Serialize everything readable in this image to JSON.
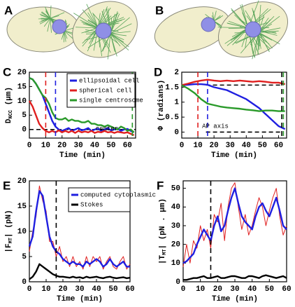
{
  "panel_labels": [
    "A",
    "B",
    "C",
    "D",
    "E",
    "F"
  ],
  "chart_data": [
    {
      "type": "line",
      "ylabel": {
        "text": "D",
        "sub": "NCC",
        "unit": " (μm)"
      },
      "xlabel": "Time (min)",
      "xlim": [
        0,
        65
      ],
      "xticks": [
        0,
        10,
        20,
        30,
        40,
        50,
        60
      ],
      "ylim": [
        -3,
        20
      ],
      "yticks": [
        0,
        5,
        10,
        15,
        20
      ],
      "x": [
        0,
        2,
        4,
        6,
        8,
        10,
        12,
        14,
        16,
        18,
        20,
        22,
        24,
        26,
        28,
        30,
        32,
        34,
        36,
        38,
        40,
        42,
        44,
        46,
        48,
        50,
        52,
        54,
        56,
        58,
        60,
        62,
        64
      ],
      "series": [
        {
          "name": "ellipsoidal cell",
          "color": "#1f1fe0",
          "values": [
            18,
            17.5,
            16,
            14,
            12,
            9,
            6,
            3,
            1,
            0,
            -0.5,
            0,
            0.5,
            -0.5,
            0,
            0.5,
            -0.3,
            0,
            0.5,
            -0.5,
            0,
            0.3,
            -0.5,
            0,
            0.5,
            -0.3,
            0,
            0.3,
            -0.5,
            0,
            0.2,
            -0.5,
            -1
          ]
        },
        {
          "name": "spherical cell",
          "color": "#e01f1f",
          "values": [
            10,
            8,
            5,
            2,
            0.5,
            -0.5,
            -1,
            -0.5,
            -1,
            -0.3,
            -1,
            -0.5,
            -1,
            -0.5,
            -1.2,
            -0.5,
            -1,
            -0.7,
            -1,
            -0.5,
            -1.2,
            -0.8,
            -1,
            -0.5,
            -1,
            -0.8,
            -1.2,
            -0.8,
            -1,
            -1.2,
            -1,
            -1.5,
            -2
          ]
        },
        {
          "name": "single centrosome",
          "color": "#2a9a2a",
          "values": [
            18,
            17.5,
            16,
            14,
            12,
            11,
            9,
            6,
            4,
            3.5,
            3.5,
            4,
            3,
            3.5,
            3,
            3,
            2.5,
            2.5,
            3,
            2,
            2,
            1.5,
            1.5,
            1,
            1.5,
            1,
            0.5,
            0,
            1,
            0.5,
            -0.5,
            0,
            -1
          ]
        }
      ],
      "vlines": [
        {
          "x": 10,
          "color": "#e01f1f"
        },
        {
          "x": 16,
          "color": "#1f1fe0"
        },
        {
          "x": 63,
          "color": "#2a9a2a"
        }
      ],
      "hlines": [
        {
          "y": 0,
          "x0": 0,
          "x1": 65,
          "color": "#000000"
        }
      ],
      "annotations": [
        "center"
      ]
    },
    {
      "type": "line",
      "ylabel": {
        "text": "Φ (radians)"
      },
      "xlabel": "Time (min)",
      "xlim": [
        0,
        65
      ],
      "xticks": [
        0,
        10,
        20,
        30,
        40,
        50,
        60
      ],
      "ylim": [
        -0.2,
        2
      ],
      "yticks": [
        0,
        0.5,
        1,
        1.5,
        2
      ],
      "x": [
        0,
        4,
        8,
        12,
        16,
        20,
        24,
        28,
        32,
        36,
        40,
        44,
        48,
        52,
        56,
        60,
        64
      ],
      "series": [
        {
          "color": "#1f1fe0",
          "values": [
            1.57,
            1.58,
            1.6,
            1.6,
            1.58,
            1.5,
            1.45,
            1.4,
            1.3,
            1.2,
            1.1,
            0.95,
            0.8,
            0.6,
            0.4,
            0.2,
            0.1
          ]
        },
        {
          "color": "#e01f1f",
          "values": [
            1.57,
            1.62,
            1.68,
            1.72,
            1.75,
            1.72,
            1.7,
            1.72,
            1.7,
            1.72,
            1.7,
            1.68,
            1.7,
            1.68,
            1.65,
            1.65,
            1.6
          ]
        },
        {
          "color": "#2a9a2a",
          "values": [
            1.57,
            1.45,
            1.3,
            1.1,
            0.95,
            0.9,
            0.85,
            0.82,
            0.8,
            0.78,
            0.75,
            0.73,
            0.7,
            0.72,
            0.72,
            0.7,
            0.7
          ]
        }
      ],
      "vlines": [
        {
          "x": 10,
          "color": "#e01f1f"
        },
        {
          "x": 16,
          "color": "#1f1fe0"
        },
        {
          "x": 62,
          "color": "#000000"
        },
        {
          "x": 63,
          "color": "#2a9a2a"
        }
      ],
      "hlines": [
        {
          "y": 1.57,
          "x0": 15,
          "x1": 62,
          "color": "#000000"
        },
        {
          "y": 0,
          "x0": 15,
          "x1": 62,
          "color": "#000000"
        }
      ],
      "annotations": [
        "AP axis"
      ]
    },
    {
      "type": "line",
      "ylabel": {
        "text": "|F",
        "sub": "MT",
        "unit": "| (pN)"
      },
      "xlabel": "Time (min)",
      "xlim": [
        0,
        60
      ],
      "xticks": [
        0,
        10,
        20,
        30,
        40,
        50,
        60
      ],
      "ylim": [
        0,
        20
      ],
      "yticks": [
        0,
        5,
        10,
        15,
        20
      ],
      "x": [
        0,
        2,
        4,
        6,
        8,
        10,
        12,
        14,
        16,
        18,
        20,
        22,
        24,
        26,
        28,
        30,
        32,
        34,
        36,
        38,
        40,
        42,
        44,
        46,
        48,
        50,
        52,
        54,
        56,
        58,
        60
      ],
      "series": [
        {
          "color": "#e01f1f",
          "values": [
            6,
            10,
            13,
            19,
            16,
            14,
            8,
            8,
            5,
            7,
            4,
            5,
            3,
            5,
            3,
            4,
            2.5,
            5,
            3,
            5,
            4,
            5,
            2.5,
            4,
            5,
            3,
            2.5,
            4,
            5,
            2.5,
            3.5
          ]
        },
        {
          "name": "computed cytoplasmic",
          "color": "#1f1fe0",
          "values": [
            7,
            9,
            14,
            18,
            17,
            13,
            9,
            7,
            6,
            5.5,
            4.5,
            4,
            3.5,
            4,
            3.5,
            3.5,
            3,
            4,
            3.5,
            4,
            4.5,
            4,
            3,
            3.5,
            4.5,
            3.5,
            3,
            3.5,
            4,
            3,
            3
          ]
        },
        {
          "name": "Stokes",
          "color": "#000000",
          "values": [
            0.5,
            1,
            2,
            3.5,
            3,
            2.5,
            2,
            1.5,
            1.2,
            1,
            1,
            0.9,
            0.8,
            1,
            0.8,
            0.9,
            0.7,
            1,
            0.8,
            0.9,
            1,
            0.8,
            0.7,
            0.9,
            1,
            0.8,
            0.7,
            0.8,
            0.9,
            0.7,
            0.8
          ]
        }
      ],
      "vlines": [
        {
          "x": 16,
          "color": "#000000"
        }
      ],
      "hlines": [],
      "annotations": []
    },
    {
      "type": "line",
      "ylabel": {
        "text": "|T",
        "sub": "MT",
        "unit": "| (pN . μm)"
      },
      "xlabel": "Time (min)",
      "xlim": [
        0,
        60
      ],
      "xticks": [
        0,
        10,
        20,
        30,
        40,
        50,
        60
      ],
      "ylim": [
        0,
        54
      ],
      "yticks": [
        0,
        10,
        20,
        30,
        40,
        50
      ],
      "x": [
        0,
        2,
        4,
        6,
        8,
        10,
        12,
        14,
        16,
        18,
        20,
        22,
        24,
        26,
        28,
        30,
        32,
        34,
        36,
        38,
        40,
        42,
        44,
        46,
        48,
        50,
        52,
        54,
        56,
        58,
        60
      ],
      "series": [
        {
          "color": "#e01f1f",
          "values": [
            8,
            20,
            10,
            22,
            18,
            30,
            22,
            28,
            18,
            36,
            32,
            42,
            22,
            40,
            50,
            53,
            40,
            28,
            36,
            25,
            30,
            38,
            45,
            40,
            30,
            38,
            45,
            50,
            35,
            25,
            30
          ]
        },
        {
          "color": "#1f1fe0",
          "values": [
            10,
            11,
            13,
            15,
            20,
            24,
            28,
            25,
            22,
            30,
            35,
            27,
            30,
            38,
            45,
            50,
            42,
            35,
            32,
            30,
            28,
            35,
            40,
            42,
            38,
            35,
            40,
            45,
            38,
            30,
            28
          ]
        },
        {
          "color": "#000000",
          "values": [
            1,
            1,
            1.5,
            2,
            2,
            2.5,
            3,
            2,
            2,
            2.5,
            3,
            2,
            2,
            2.5,
            3,
            3,
            2.5,
            2,
            2,
            3,
            3,
            2.5,
            2,
            3,
            3.5,
            3,
            2.5,
            2,
            2.5,
            3,
            2
          ]
        }
      ],
      "vlines": [
        {
          "x": 16,
          "color": "#000000"
        }
      ],
      "hlines": [],
      "annotations": []
    }
  ]
}
